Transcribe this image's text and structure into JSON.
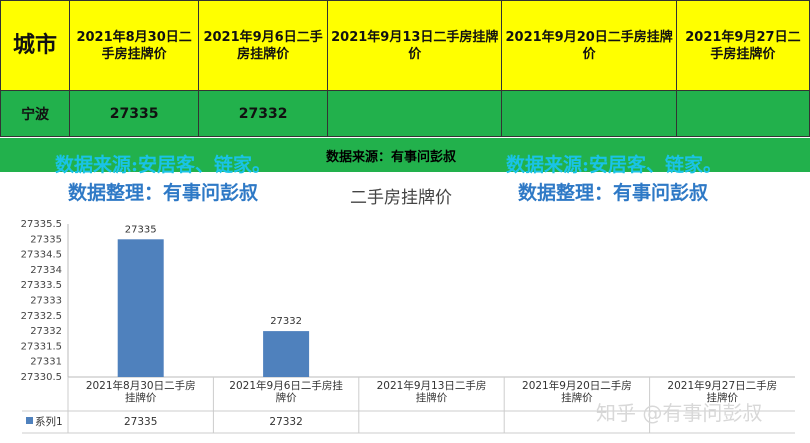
{
  "table": {
    "header": [
      "城市",
      "2021年8月30日二手房挂牌价",
      "2021年9月6日二手房挂牌价",
      "2021年9月13日二手房挂牌价",
      "2021年9月20日二手房挂牌价",
      "2021年9月27日二手房挂牌价"
    ],
    "rows": [
      [
        "宁波",
        "27335",
        "27332",
        "",
        "",
        ""
      ]
    ]
  },
  "watermarks": {
    "source_left": "数据来源:安居客、链家。",
    "source_center": "数据来源：有事问彭叔",
    "source_right": "数据来源:安居客、链家。",
    "organizer_left": "数据整理：有事问彭叔",
    "organizer_right": "数据整理：有事问彭叔"
  },
  "logo": "知乎 @有事问彭叔",
  "colors": {
    "yellow": "#ffff00",
    "green": "#22b14c",
    "bar": "#4f81bd"
  },
  "chart_data": {
    "type": "bar",
    "title": "二手房挂牌价",
    "categories": [
      "2021年8月30日二手房挂牌价",
      "2021年9月6日二手房挂牌价",
      "2021年9月13日二手房挂牌价",
      "2021年9月20日二手房挂牌价",
      "2021年9月27日二手房挂牌价"
    ],
    "series": [
      {
        "name": "系列1",
        "values": [
          27335,
          27332,
          null,
          null,
          null
        ]
      }
    ],
    "data_labels": [
      "27335",
      "27332",
      "",
      "",
      ""
    ],
    "ylim": [
      27330.5,
      27335.5
    ],
    "yticks": [
      27330.5,
      27331,
      27331.5,
      27332,
      27332.5,
      27333,
      27333.5,
      27334,
      27334.5,
      27335,
      27335.5
    ],
    "ytick_labels": [
      "27330.5",
      "27331",
      "27331.5",
      "27332",
      "27332.5",
      "27333",
      "27333.5",
      "27334",
      "27334.5",
      "27335",
      "27335.5"
    ],
    "legend_label": "系列1",
    "data_table": [
      "27335",
      "27332",
      "",
      "",
      ""
    ],
    "grid": false
  }
}
